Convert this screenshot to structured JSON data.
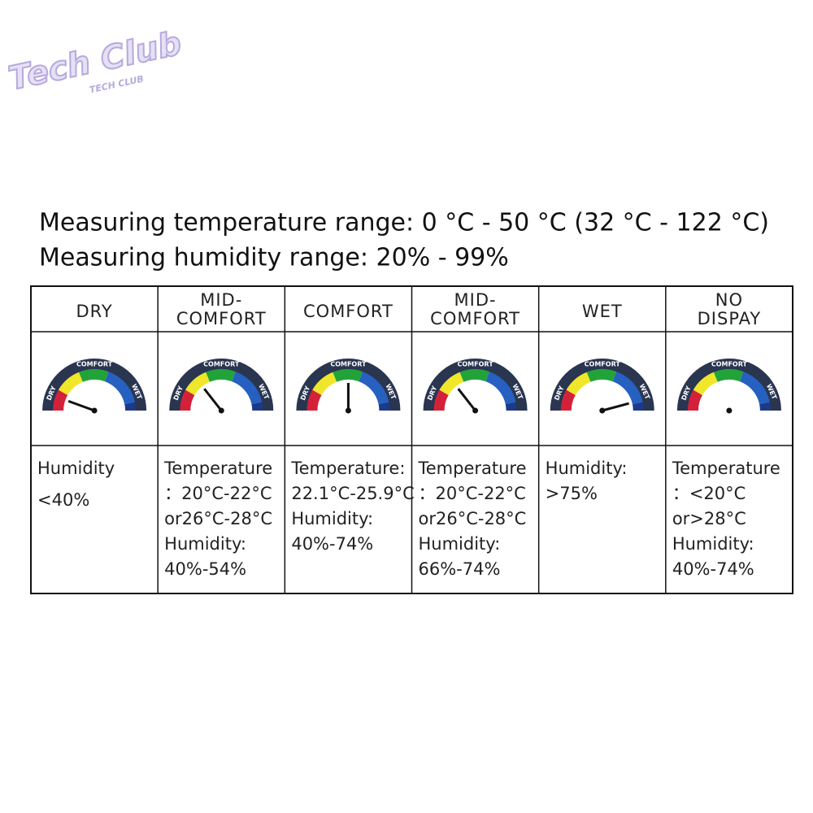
{
  "logo": {
    "title": "Tech Club",
    "subtitle": "TECH CLUB"
  },
  "heading": [
    "Measuring temperature range: 0 °C - 50 °C (32 °C - 122 °C)",
    "Measuring humidity range: 20% - 99%"
  ],
  "gauge_labels": {
    "dry": "DRY",
    "comfort": "COMFORT",
    "wet": "WET"
  },
  "table": {
    "columns": [
      {
        "header": [
          "DRY"
        ],
        "description": [
          "Humidity",
          "<40%"
        ]
      },
      {
        "header": [
          "MID-",
          "COMFORT"
        ],
        "description": [
          "Temperature",
          "：20°C-22°C",
          "or26°C-28°C",
          "Humidity:",
          "40%-54%"
        ]
      },
      {
        "header": [
          "COMFORT"
        ],
        "description": [
          "Temperature:",
          "22.1°C-25.9°C",
          "Humidity:",
          "40%-74%"
        ]
      },
      {
        "header": [
          "MID-",
          "COMFORT"
        ],
        "description": [
          "Temperature",
          "：20°C-22°C",
          "or26°C-28°C",
          "Humidity:",
          "66%-74%"
        ]
      },
      {
        "header": [
          "WET"
        ],
        "description": [
          "Humidity:",
          ">75%"
        ]
      },
      {
        "header": [
          "NO",
          "DISPAY"
        ],
        "description": [
          "Temperature",
          "：<20°C",
          "or>28°C",
          "Humidity:",
          "40%-74%"
        ]
      }
    ]
  }
}
